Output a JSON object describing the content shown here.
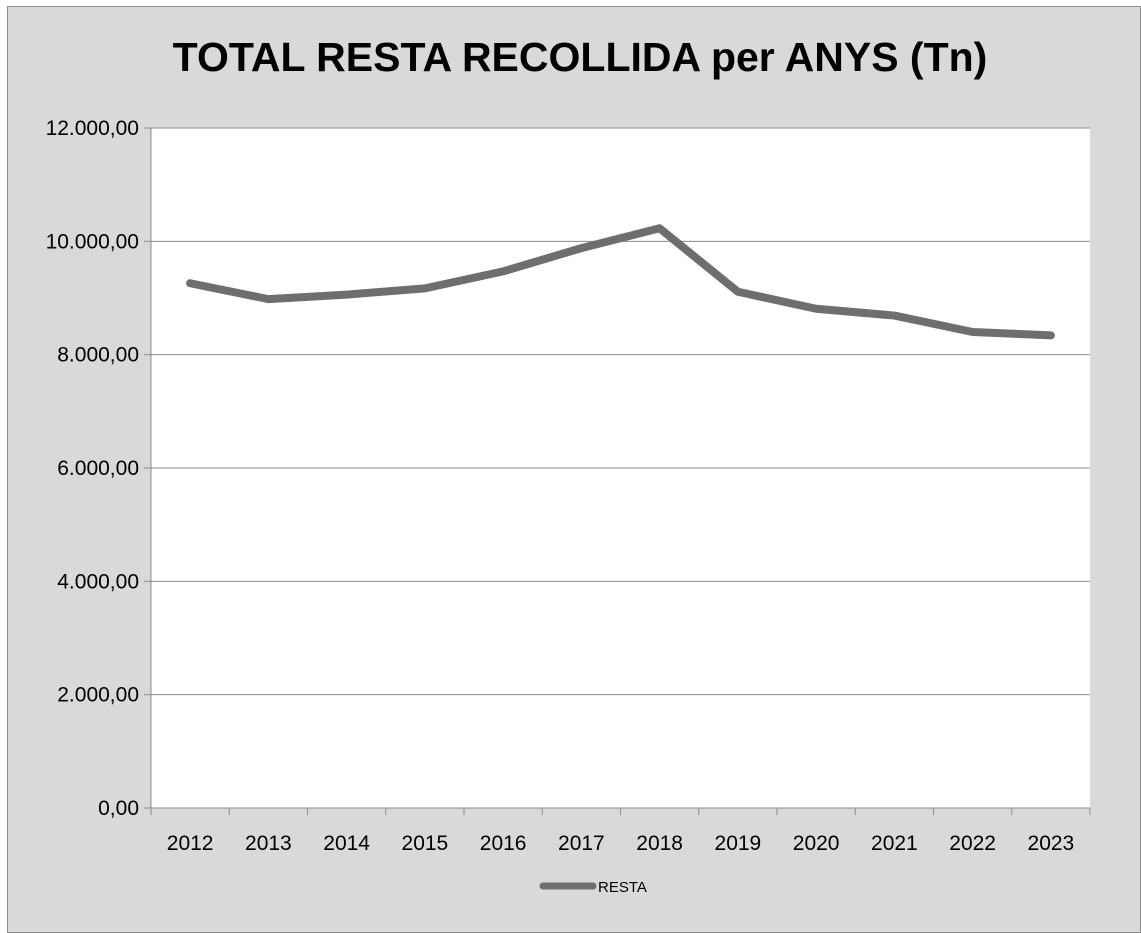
{
  "chart_data": {
    "type": "line",
    "title": "TOTAL RESTA RECOLLIDA per ANYS (Tn)",
    "xlabel": "",
    "ylabel": "",
    "categories": [
      "2012",
      "2013",
      "2014",
      "2015",
      "2016",
      "2017",
      "2018",
      "2019",
      "2020",
      "2021",
      "2022",
      "2023"
    ],
    "series": [
      {
        "name": "RESTA",
        "values": [
          9260,
          8980,
          9060,
          9170,
          9470,
          9880,
          10230,
          9110,
          8810,
          8690,
          8400,
          8340
        ],
        "color": "#6e6e6e"
      }
    ],
    "ylim": [
      0,
      12000
    ],
    "yticks": [
      0,
      2000,
      4000,
      6000,
      8000,
      10000,
      12000
    ],
    "ytick_labels": [
      "0,00",
      "2.000,00",
      "4.000,00",
      "6.000,00",
      "8.000,00",
      "10.000,00",
      "12.000,00"
    ],
    "grid": true,
    "legend_position": "bottom",
    "colors": {
      "frame_background": "#d9d9d9",
      "plot_background": "#ffffff",
      "gridline": "#8c8c8c"
    }
  }
}
